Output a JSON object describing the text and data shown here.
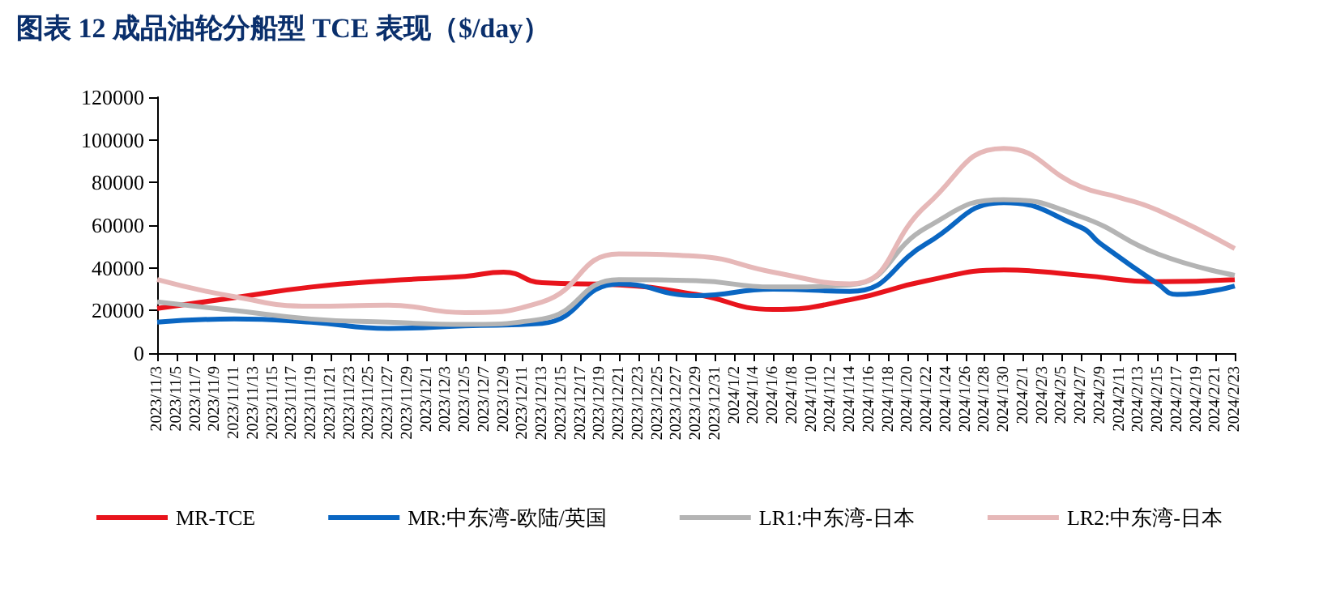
{
  "chart_data": {
    "type": "line",
    "title": "图表 12  成品油轮分船型 TCE 表现（$/day）",
    "categories": [
      "2023/11/3",
      "2023/11/5",
      "2023/11/7",
      "2023/11/9",
      "2023/11/11",
      "2023/11/13",
      "2023/11/15",
      "2023/11/17",
      "2023/11/19",
      "2023/11/21",
      "2023/11/23",
      "2023/11/25",
      "2023/11/27",
      "2023/11/29",
      "2023/12/1",
      "2023/12/3",
      "2023/12/5",
      "2023/12/7",
      "2023/12/9",
      "2023/12/11",
      "2023/12/13",
      "2023/12/15",
      "2023/12/17",
      "2023/12/19",
      "2023/12/21",
      "2023/12/23",
      "2023/12/25",
      "2023/12/27",
      "2023/12/29",
      "2023/12/31",
      "2024/1/2",
      "2024/1/4",
      "2024/1/6",
      "2024/1/8",
      "2024/1/10",
      "2024/1/12",
      "2024/1/14",
      "2024/1/16",
      "2024/1/18",
      "2024/1/20",
      "2024/1/22",
      "2024/1/24",
      "2024/1/26",
      "2024/1/28",
      "2024/1/30",
      "2024/2/1",
      "2024/2/3",
      "2024/2/5",
      "2024/2/7",
      "2024/2/9",
      "2024/2/11",
      "2024/2/13",
      "2024/2/15",
      "2024/2/17",
      "2024/2/19",
      "2024/2/21",
      "2024/2/23"
    ],
    "series": [
      {
        "name": "MR-TCE",
        "color": "#e8141c",
        "values": [
          21000,
          null,
          null,
          null,
          26000,
          null,
          null,
          null,
          31000,
          null,
          null,
          null,
          34000,
          null,
          null,
          null,
          36000,
          null,
          38000,
          null,
          33000,
          null,
          null,
          null,
          32000,
          null,
          null,
          null,
          27500,
          null,
          null,
          null,
          20500,
          null,
          null,
          null,
          25000,
          null,
          null,
          null,
          34000,
          null,
          null,
          null,
          39000,
          null,
          null,
          null,
          36500,
          null,
          null,
          null,
          33500,
          null,
          null,
          null,
          34500
        ]
      },
      {
        "name": "MR:中东湾-欧陆/英国",
        "color": "#0a66c2",
        "values": [
          14500,
          null,
          null,
          null,
          16000,
          null,
          null,
          null,
          14500,
          null,
          null,
          null,
          11600,
          null,
          null,
          null,
          12800,
          null,
          null,
          null,
          14000,
          null,
          null,
          null,
          32500,
          null,
          null,
          null,
          27000,
          null,
          null,
          null,
          30000,
          null,
          null,
          null,
          29000,
          null,
          null,
          null,
          51500,
          null,
          null,
          null,
          70500,
          null,
          null,
          null,
          59000,
          51500,
          null,
          null,
          32500,
          27500,
          null,
          null,
          31500
        ]
      },
      {
        "name": "LR1:中东湾-日本",
        "color": "#b4b4b4",
        "values": [
          24000,
          null,
          null,
          null,
          20000,
          null,
          null,
          null,
          16000,
          null,
          null,
          null,
          14500,
          null,
          null,
          null,
          13500,
          null,
          null,
          null,
          16000,
          null,
          null,
          null,
          34500,
          null,
          null,
          null,
          34000,
          null,
          null,
          null,
          31000,
          null,
          null,
          null,
          32000,
          null,
          null,
          null,
          59000,
          null,
          null,
          null,
          72000,
          null,
          null,
          null,
          64000,
          null,
          null,
          null,
          46500,
          null,
          null,
          null,
          36500
        ]
      },
      {
        "name": "LR2:中东湾-日本",
        "color": "#e6b8b8",
        "values": [
          34500,
          null,
          null,
          null,
          26500,
          null,
          null,
          null,
          22000,
          null,
          null,
          null,
          22500,
          null,
          null,
          null,
          19000,
          null,
          null,
          null,
          24000,
          null,
          null,
          null,
          46500,
          null,
          null,
          null,
          45500,
          null,
          null,
          null,
          38000,
          null,
          null,
          null,
          32500,
          null,
          null,
          null,
          69500,
          null,
          null,
          null,
          96000,
          null,
          null,
          null,
          78000,
          null,
          73000,
          null,
          67000,
          null,
          null,
          null,
          49000
        ]
      }
    ],
    "ylim": [
      0,
      120000
    ],
    "yticks": [
      0,
      20000,
      40000,
      60000,
      80000,
      100000,
      120000
    ],
    "legend": "bottom",
    "grid": false,
    "marker": "none"
  }
}
